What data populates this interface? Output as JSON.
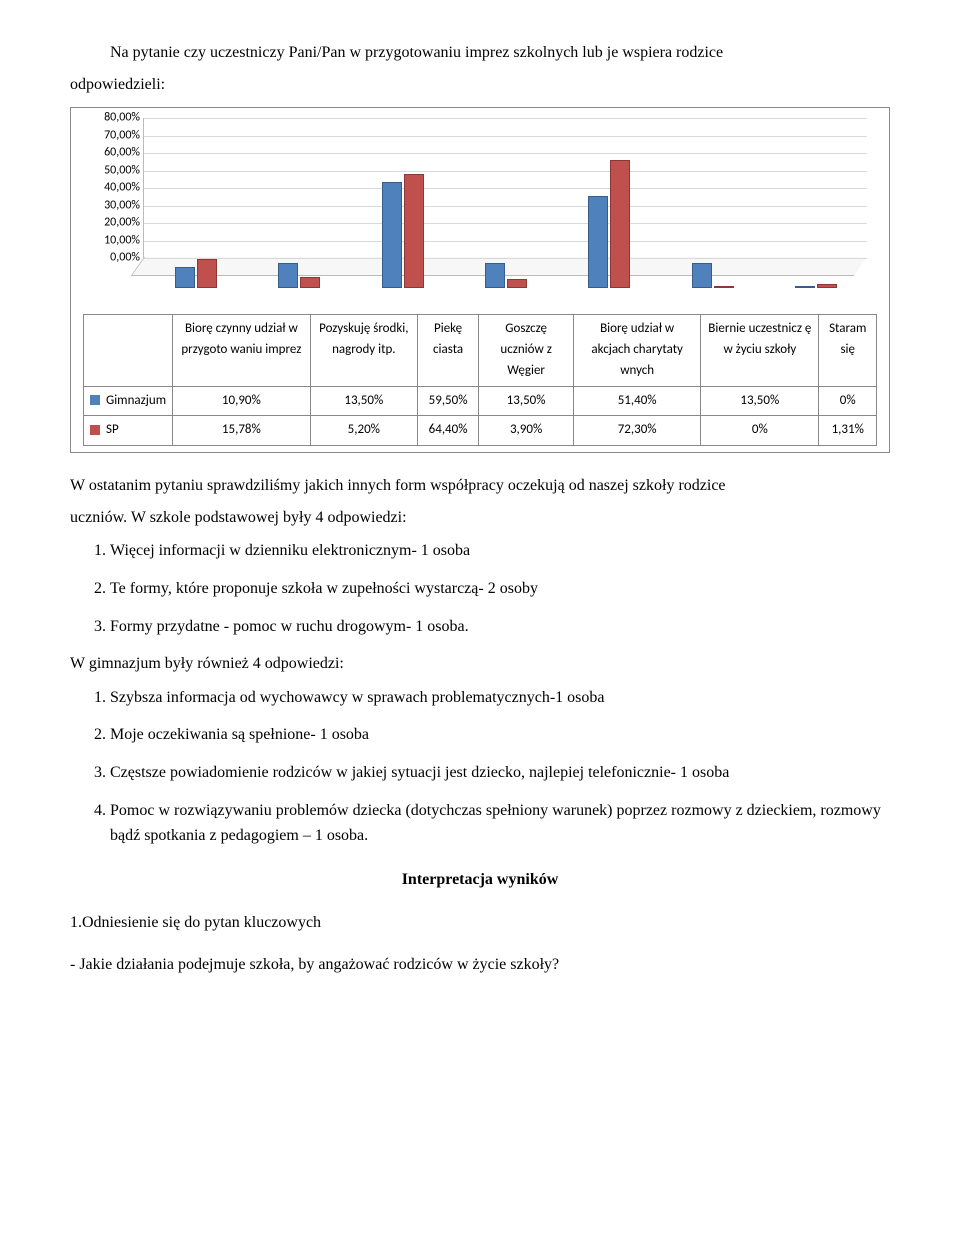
{
  "intro": {
    "line1": "Na pytanie czy uczestniczy Pani/Pan w przygotowaniu imprez szkolnych lub je wspiera rodzice",
    "line2": "odpowiedzieli:"
  },
  "chart": {
    "type": "bar",
    "ylabels": [
      "80,00%",
      "70,00%",
      "60,00%",
      "50,00%",
      "40,00%",
      "30,00%",
      "20,00%",
      "10,00%",
      "0,00%"
    ],
    "ymax": 80,
    "categories": [
      "Biorę czynny udział w przygoto waniu imprez",
      "Pozyskuję środki, nagrody itp.",
      "Piekę ciasta",
      "Goszczę uczniów z Węgier",
      "Biorę udział w akcjach charytaty wnych",
      "Biernie uczestnicz ę w życiu szkoły",
      "Staram się"
    ],
    "series": [
      {
        "name": "Gimnazjum",
        "color": "#4f81bd",
        "values_display": [
          "10,90%",
          "13,50%",
          "59,50%",
          "13,50%",
          "51,40%",
          "13,50%",
          "0%"
        ],
        "values": [
          10.9,
          13.5,
          59.5,
          13.5,
          51.4,
          13.5,
          0
        ]
      },
      {
        "name": "SP",
        "color": "#c0504d",
        "values_display": [
          "15,78%",
          "5,20%",
          "64,40%",
          "3,90%",
          "72,30%",
          "0%",
          "1,31%"
        ],
        "values": [
          15.78,
          5.2,
          64.4,
          3.9,
          72.3,
          0,
          1.31
        ]
      }
    ],
    "background_color": "#ffffff",
    "grid_color": "#d9d9d9",
    "font_family": "Calibri",
    "label_fontsize": 13
  },
  "mid": {
    "p1a": "W ostatanim pytaniu sprawdziliśmy jakich innych form współpracy oczekują od naszej szkoły rodzice",
    "p1b": "uczniów. W szkole podstawowej były 4 odpowiedzi:",
    "list1": [
      "Więcej informacji w dzienniku elektronicznym- 1 osoba",
      "Te formy, które proponuje szkoła w zupełności wystarczą- 2 osoby",
      "Formy przydatne - pomoc w ruchu drogowym- 1 osoba."
    ],
    "p2": "W gimnazjum były również 4 odpowiedzi:",
    "list2": [
      "Szybsza informacja od wychowawcy w sprawach problematycznych-1 osoba",
      "Moje oczekiwania są spełnione- 1 osoba",
      "Częstsze powiadomienie rodziców w jakiej sytuacji jest dziecko, najlepiej telefonicznie- 1 osoba",
      "Pomoc w rozwiązywaniu problemów dziecka (dotychczas spełniony warunek) poprzez rozmowy z dzieckiem, rozmowy bądź spotkania z pedagogiem – 1 osoba."
    ]
  },
  "footer": {
    "heading": "Interpretacja wyników",
    "sub": "1.Odniesienie się do pytan kluczowych",
    "q": "- Jakie działania podejmuje szkoła, by angażować rodziców w życie szkoły?"
  }
}
